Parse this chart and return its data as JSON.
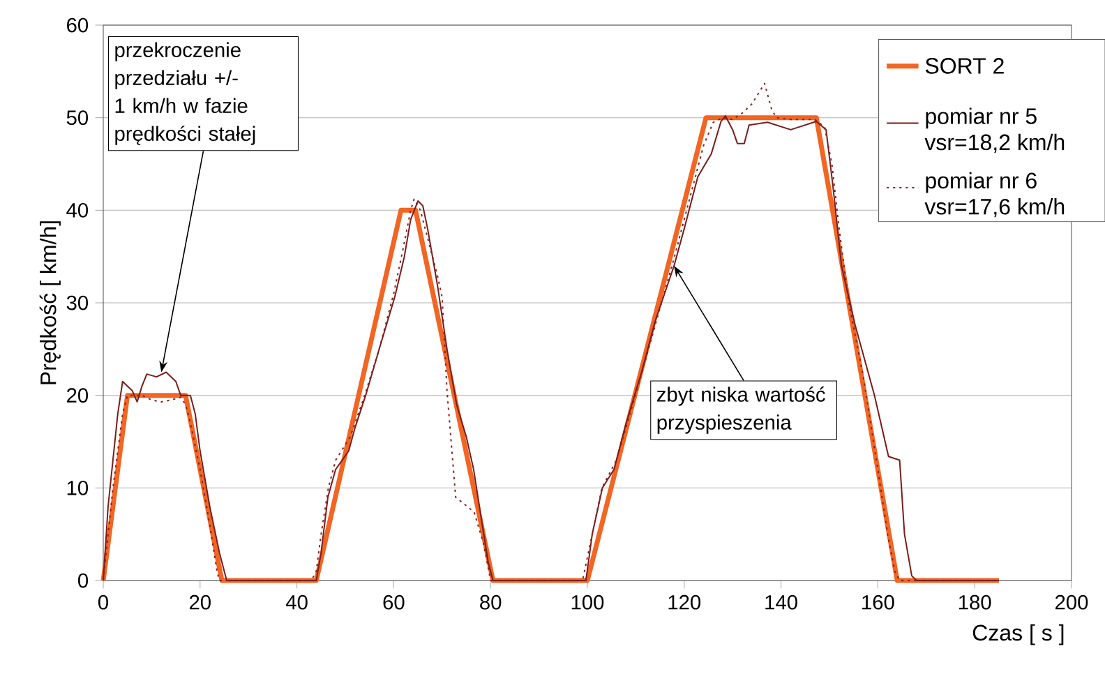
{
  "chart_data": {
    "type": "line",
    "xlabel": "Czas [ s ]",
    "ylabel": "Prędkość [ km/h]",
    "xlim": [
      0,
      200
    ],
    "ylim": [
      0,
      60
    ],
    "xticks": [
      0,
      20,
      40,
      60,
      80,
      100,
      120,
      140,
      160,
      180,
      200
    ],
    "yticks": [
      0,
      10,
      20,
      30,
      40,
      50,
      60
    ],
    "grid": "y",
    "legend": "top right",
    "marker": "none",
    "series": [
      {
        "name": "SORT 2",
        "color": "#f26522",
        "line_style": "solid",
        "x": [
          0,
          5,
          17,
          24.5,
          44,
          61.5,
          64.5,
          80.5,
          100,
          124.5,
          147.3,
          164,
          185
        ],
        "values": [
          0,
          20,
          20,
          0,
          0,
          40,
          40,
          0,
          0,
          50,
          50,
          0,
          0
        ]
      },
      {
        "name": "pomiar nr 5 vsr=18,2 km/h",
        "color": "#7a1c1c",
        "line_style": "solid",
        "x": [
          0,
          1,
          3,
          4,
          6,
          7,
          8,
          9,
          11,
          13,
          15,
          16,
          18,
          19,
          20,
          22,
          24,
          25.5,
          44,
          45,
          46.4,
          48,
          50.7,
          52,
          54.2,
          57,
          60.2,
          62.2,
          63.5,
          65,
          66,
          67,
          69,
          71,
          73,
          75,
          76.5,
          78,
          79.5,
          80.5,
          99.7,
          101,
          103.1,
          105.5,
          108,
          111.2,
          114,
          117.9,
          120,
          122.8,
          125.6,
          127.6,
          128.5,
          130,
          131,
          132.4,
          133.4,
          137.2,
          142,
          147.3,
          149.3,
          150.7,
          152.5,
          155.3,
          159.3,
          162.2,
          164.5,
          165.5,
          167,
          168,
          185
        ],
        "values": [
          0,
          8,
          18,
          21.5,
          20.5,
          19.3,
          21,
          22.3,
          22,
          22.5,
          21.5,
          20,
          20,
          18,
          14,
          8,
          3,
          0,
          0,
          3,
          9,
          12,
          14,
          16.5,
          20,
          25,
          30.6,
          35,
          39,
          41,
          40.5,
          38,
          32,
          25,
          19,
          15.5,
          12,
          7,
          2,
          0,
          0,
          5,
          10,
          12,
          17,
          22.5,
          28,
          34,
          38,
          43.6,
          46.1,
          49.6,
          50.2,
          48.7,
          47.2,
          47.2,
          49.2,
          49.5,
          48.7,
          49.6,
          48.7,
          42.7,
          34,
          27.6,
          20,
          13.4,
          13,
          5,
          0.5,
          0,
          0
        ]
      },
      {
        "name": "pomiar nr 6 vsr=17,6 km/h",
        "color": "#8b2020",
        "line_style": "dotted",
        "x": [
          0,
          2,
          4,
          5,
          8,
          10,
          12,
          14,
          16,
          17,
          18,
          20,
          22,
          23.5,
          24,
          43,
          44,
          45,
          46.5,
          48,
          51,
          54,
          57,
          60,
          62,
          63.5,
          64.2,
          65.5,
          67,
          69,
          70,
          71,
          72.8,
          76.6,
          78.6,
          80,
          99,
          101,
          103,
          106,
          111,
          118,
          122,
          124,
          126,
          128,
          130,
          132,
          134,
          136.6,
          138,
          139,
          142,
          147,
          149,
          150.5,
          152,
          154,
          157,
          160,
          162,
          163.5,
          164.5,
          185
        ],
        "values": [
          0,
          10,
          18,
          20,
          20,
          19.5,
          19.3,
          19.5,
          19.8,
          19,
          17,
          12,
          6,
          1,
          0,
          0,
          1,
          5,
          10,
          13,
          15.5,
          20,
          25,
          31,
          36,
          40,
          41.2,
          40,
          37,
          33,
          30.6,
          20.5,
          9,
          7.4,
          3.9,
          0,
          0,
          5,
          10,
          13,
          22,
          35,
          43,
          47,
          49.5,
          50,
          49.8,
          50.5,
          51.5,
          53.7,
          51,
          50,
          49.8,
          49.8,
          49,
          45,
          38,
          30,
          22,
          12,
          5,
          1,
          0,
          0
        ]
      }
    ],
    "annotations": [
      {
        "text": "przekroczenie przedziału +/- 1 km/h w fazie prędkości stałej",
        "x": 12,
        "y": 22.5
      },
      {
        "text": "zbyt niska wartość przyspieszenia",
        "x": 117.9,
        "y": 34
      }
    ]
  }
}
